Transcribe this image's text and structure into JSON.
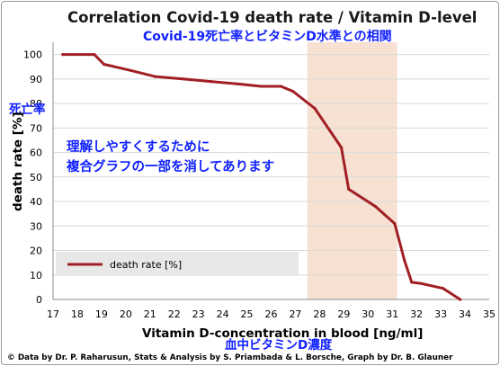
{
  "chart_data": {
    "type": "line",
    "title": "Correlation Covid-19 death rate / Vitamin D-level",
    "subtitle": "Covid-19死亡率とビタミンD水準との相関",
    "xlabel": "Vitamin D-concentration  in blood [ng/ml]",
    "xlabel_jp": "血中ビタミンD濃度",
    "ylabel": "death rate [%]",
    "ylabel_jp": "死亡率",
    "xlim": [
      17,
      35
    ],
    "ylim": [
      0,
      105
    ],
    "x_ticks": [
      17,
      18,
      19,
      20,
      21,
      22,
      23,
      24,
      25,
      26,
      27,
      28,
      29,
      30,
      31,
      32,
      33,
      34,
      35
    ],
    "y_ticks": [
      0,
      10,
      20,
      30,
      40,
      50,
      60,
      70,
      80,
      90,
      100
    ],
    "grid": "horizontal",
    "legend_position": "bottom-left",
    "highlight_band": {
      "x_range": [
        27.5,
        31.2
      ],
      "color": "#f6e1d3"
    },
    "series": [
      {
        "name": "death rate [%]",
        "color": "#a11f24",
        "x": [
          17.4,
          18.7,
          19.1,
          20.2,
          21.2,
          22.4,
          23.5,
          24.6,
          25.6,
          26.4,
          26.9,
          27.8,
          28.9,
          29.2,
          30.3,
          31.1,
          31.5,
          31.8,
          32.2,
          33.1,
          33.8
        ],
        "y": [
          100,
          100,
          96,
          93.5,
          91,
          90,
          89,
          88,
          87,
          87,
          85,
          78,
          62,
          45,
          38,
          31,
          16,
          7,
          6.5,
          4.5,
          0
        ]
      }
    ],
    "annotations": [
      "理解しやすくするために",
      "複合グラフの一部を消してあります"
    ]
  },
  "credit": "© Data by Dr. P. Raharusun, Stats & Analysis by S. Priambada & L. Borsche, Graph by Dr. B. Glauner"
}
